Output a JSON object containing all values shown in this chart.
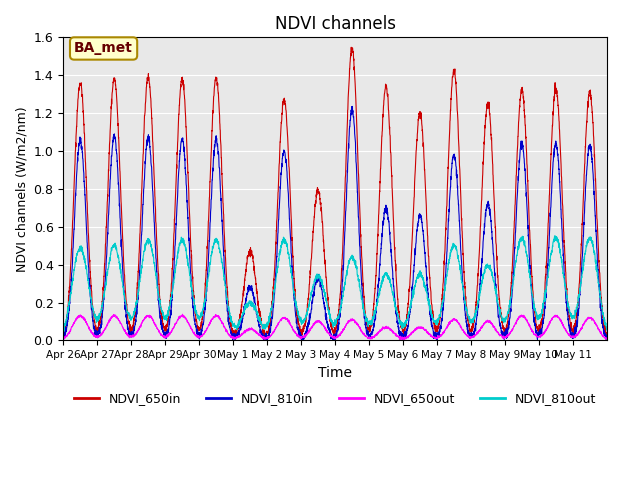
{
  "title": "NDVI channels",
  "xlabel": "Time",
  "ylabel": "NDVI channels (W/m2/nm)",
  "ylim": [
    0,
    1.6
  ],
  "annotation_text": "BA_met",
  "background_color": "#e8e8e8",
  "x_tick_labels": [
    "Apr 26",
    "Apr 27",
    "Apr 28",
    "Apr 29",
    "Apr 30",
    "May 1",
    "May 2",
    "May 3",
    "May 4",
    "May 5",
    "May 6",
    "May 7",
    "May 8",
    "May 9",
    "May 10",
    "May 11"
  ],
  "colors": {
    "NDVI_650in": "#cc0000",
    "NDVI_810in": "#0000cc",
    "NDVI_650out": "#ff00ff",
    "NDVI_810out": "#00cccc"
  },
  "peaks_650in": [
    1.36,
    1.38,
    1.39,
    1.38,
    1.38,
    0.47,
    1.27,
    0.79,
    1.54,
    1.34,
    1.2,
    1.42,
    1.25,
    1.32,
    1.33,
    1.31
  ],
  "peaks_810in": [
    1.06,
    1.08,
    1.07,
    1.06,
    1.06,
    0.28,
    1.0,
    0.33,
    1.22,
    0.7,
    0.66,
    0.98,
    0.72,
    1.04,
    1.04,
    1.03
  ],
  "peaks_650out": [
    0.13,
    0.13,
    0.13,
    0.13,
    0.13,
    0.06,
    0.12,
    0.1,
    0.11,
    0.07,
    0.07,
    0.11,
    0.1,
    0.13,
    0.13,
    0.12
  ],
  "peaks_810out": [
    0.49,
    0.5,
    0.53,
    0.53,
    0.53,
    0.2,
    0.53,
    0.34,
    0.44,
    0.35,
    0.35,
    0.5,
    0.4,
    0.54,
    0.54,
    0.54
  ],
  "yticks": [
    0.0,
    0.2,
    0.4,
    0.6,
    0.8,
    1.0,
    1.2,
    1.4,
    1.6
  ]
}
